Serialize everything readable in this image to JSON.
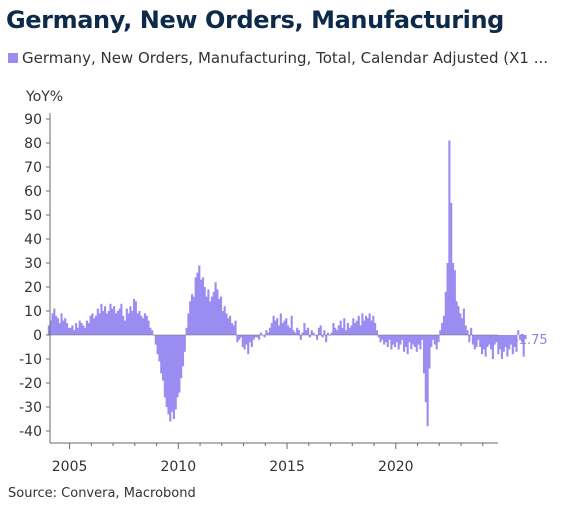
{
  "title": "Germany, New Orders, Manufacturing",
  "legend": {
    "label": "Germany, New Orders, Manufacturing, Total, Calendar Adjusted (X1 ..."
  },
  "source": "Source: Convera, Macrobond",
  "colors": {
    "bar": "#9b8cf2",
    "last_value_label": "#8f83e3",
    "axis_text": "#333333",
    "title": "#0d2a4a",
    "axis_line": "#6b6b6b"
  },
  "chart_data": {
    "type": "bar",
    "title": "Germany, New Orders, Manufacturing",
    "ylabel": "YoY%",
    "xlabel": "",
    "ylim": [
      -45,
      95
    ],
    "yticks": [
      90,
      80,
      70,
      60,
      50,
      40,
      30,
      20,
      10,
      0,
      -10,
      -20,
      -30,
      -40
    ],
    "xlim": [
      2004.1,
      2024.7
    ],
    "xticks": [
      2005,
      2010,
      2015,
      2020
    ],
    "grid": false,
    "legend_position": "top-left",
    "last_value_label": "-1.75",
    "series": [
      {
        "name": "Germany, New Orders, Manufacturing, Total, Calendar Adjusted (X1 ...",
        "frequency": "monthly",
        "start": "2004-01",
        "values": [
          4,
          6,
          9,
          11,
          8,
          7,
          5,
          9,
          6,
          7,
          5,
          3,
          3,
          4,
          2,
          5,
          3,
          6,
          5,
          4,
          3,
          6,
          5,
          8,
          9,
          7,
          8,
          11,
          9,
          13,
          10,
          12,
          9,
          10,
          13,
          11,
          12,
          9,
          10,
          11,
          13,
          8,
          6,
          11,
          9,
          12,
          10,
          15,
          14,
          9,
          10,
          8,
          7,
          9,
          8,
          6,
          3,
          2,
          0,
          -4,
          -8,
          -11,
          -16,
          -19,
          -26,
          -30,
          -33,
          -36,
          -32,
          -35,
          -31,
          -26,
          -24,
          -18,
          -13,
          -7,
          3,
          9,
          14,
          17,
          16,
          24,
          26,
          29,
          23,
          24,
          20,
          16,
          19,
          14,
          16,
          18,
          22,
          19,
          15,
          16,
          10,
          12,
          9,
          7,
          8,
          5,
          4,
          6,
          -3,
          -2,
          -1,
          -5,
          -6,
          -4,
          -8,
          -3,
          -5,
          -2,
          -1,
          -1,
          -2,
          1,
          0,
          -1,
          2,
          1,
          3,
          5,
          8,
          6,
          7,
          4,
          9,
          5,
          6,
          7,
          4,
          3,
          8,
          2,
          1,
          3,
          2,
          -2,
          1,
          5,
          2,
          3,
          -1,
          2,
          1,
          0,
          -2,
          3,
          4,
          -1,
          2,
          -3,
          1,
          0,
          1,
          5,
          3,
          2,
          4,
          6,
          3,
          7,
          2,
          5,
          3,
          4,
          7,
          5,
          6,
          8,
          4,
          9,
          6,
          8,
          7,
          9,
          6,
          8,
          5,
          2,
          -1,
          -3,
          -2,
          -4,
          -3,
          -5,
          -2,
          -6,
          -4,
          -5,
          -3,
          -6,
          -4,
          -2,
          -7,
          -5,
          -8,
          -3,
          -6,
          -4,
          -5,
          -7,
          -4,
          -6,
          -2,
          -16,
          -28,
          -38,
          -14,
          -5,
          -2,
          -4,
          -6,
          -3,
          2,
          5,
          8,
          18,
          30,
          81,
          55,
          30,
          27,
          14,
          12,
          9,
          7,
          11,
          4,
          2,
          -3,
          3,
          -4,
          -6,
          -5,
          -2,
          -5,
          -8,
          -6,
          -9,
          -5,
          -4,
          -6,
          -10,
          -4,
          -3,
          -8,
          -6,
          -10,
          -7,
          -5,
          -9,
          -6,
          -4,
          -8,
          -5,
          -7,
          2,
          -2,
          -3,
          -9,
          -1.75
        ]
      }
    ]
  }
}
